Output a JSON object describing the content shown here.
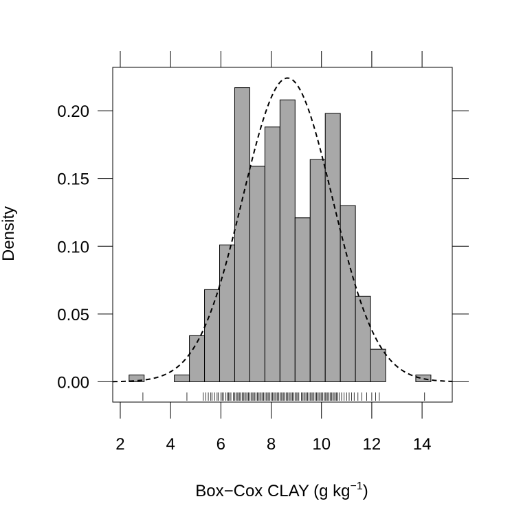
{
  "chart_data": {
    "type": "bar",
    "subtype": "histogram",
    "title": "",
    "xlabel": "Box−Cox CLAY (g kg",
    "xlabel_sup": "−1",
    "xlabel_end": ")",
    "ylabel": "Density",
    "xlim": [
      1.7,
      15.2
    ],
    "ylim": [
      -0.015,
      0.232
    ],
    "x_ticks": [
      2,
      4,
      6,
      8,
      10,
      12,
      14
    ],
    "x_tick_labels": [
      "2",
      "4",
      "6",
      "8",
      "10",
      "12",
      "14"
    ],
    "y_ticks": [
      0.0,
      0.05,
      0.1,
      0.15,
      0.2
    ],
    "y_tick_labels": [
      "0.00",
      "0.05",
      "0.10",
      "0.15",
      "0.20"
    ],
    "bar_color": "#a8a8a8",
    "bins": [
      {
        "x0": 2.35,
        "x1": 2.95,
        "density": 0.005
      },
      {
        "x0": 2.95,
        "x1": 3.55,
        "density": 0.0
      },
      {
        "x0": 3.55,
        "x1": 4.15,
        "density": 0.0
      },
      {
        "x0": 4.15,
        "x1": 4.75,
        "density": 0.005
      },
      {
        "x0": 4.75,
        "x1": 5.35,
        "density": 0.034
      },
      {
        "x0": 5.35,
        "x1": 5.95,
        "density": 0.068
      },
      {
        "x0": 5.95,
        "x1": 6.55,
        "density": 0.101
      },
      {
        "x0": 6.55,
        "x1": 7.15,
        "density": 0.217
      },
      {
        "x0": 7.15,
        "x1": 7.75,
        "density": 0.159
      },
      {
        "x0": 7.75,
        "x1": 8.35,
        "density": 0.188
      },
      {
        "x0": 8.35,
        "x1": 8.95,
        "density": 0.208
      },
      {
        "x0": 8.95,
        "x1": 9.55,
        "density": 0.121
      },
      {
        "x0": 9.55,
        "x1": 10.15,
        "density": 0.164
      },
      {
        "x0": 10.15,
        "x1": 10.75,
        "density": 0.198
      },
      {
        "x0": 10.75,
        "x1": 11.35,
        "density": 0.13
      },
      {
        "x0": 11.35,
        "x1": 11.95,
        "density": 0.063
      },
      {
        "x0": 11.95,
        "x1": 12.55,
        "density": 0.024
      },
      {
        "x0": 12.55,
        "x1": 13.15,
        "density": 0.0
      },
      {
        "x0": 13.15,
        "x1": 13.75,
        "density": 0.0
      },
      {
        "x0": 13.75,
        "x1": 14.35,
        "density": 0.005
      }
    ],
    "normal_curve": {
      "mean": 8.65,
      "sd": 1.78,
      "style": "dashed"
    },
    "rug_x": [
      2.9,
      4.65,
      5.3,
      5.4,
      5.5,
      5.6,
      5.65,
      5.75,
      5.85,
      5.9,
      6.0,
      6.05,
      6.1,
      6.2,
      6.25,
      6.3,
      6.35,
      6.4,
      6.5,
      6.55,
      6.6,
      6.65,
      6.7,
      6.75,
      6.8,
      6.85,
      6.9,
      6.95,
      7.0,
      7.05,
      7.1,
      7.15,
      7.2,
      7.25,
      7.3,
      7.35,
      7.4,
      7.45,
      7.5,
      7.55,
      7.6,
      7.65,
      7.7,
      7.75,
      7.8,
      7.85,
      7.9,
      7.95,
      8.0,
      8.05,
      8.1,
      8.15,
      8.2,
      8.25,
      8.3,
      8.35,
      8.4,
      8.45,
      8.5,
      8.55,
      8.6,
      8.65,
      8.7,
      8.75,
      8.8,
      8.85,
      8.9,
      8.95,
      9.0,
      9.05,
      9.1,
      9.2,
      9.25,
      9.3,
      9.35,
      9.4,
      9.45,
      9.5,
      9.55,
      9.6,
      9.65,
      9.7,
      9.75,
      9.8,
      9.85,
      9.9,
      9.95,
      10.0,
      10.05,
      10.1,
      10.15,
      10.2,
      10.25,
      10.3,
      10.35,
      10.4,
      10.45,
      10.5,
      10.55,
      10.6,
      10.65,
      10.7,
      10.8,
      10.9,
      11.0,
      11.1,
      11.2,
      11.3,
      11.45,
      11.6,
      11.8,
      12.0,
      12.15,
      12.3,
      14.1
    ]
  }
}
